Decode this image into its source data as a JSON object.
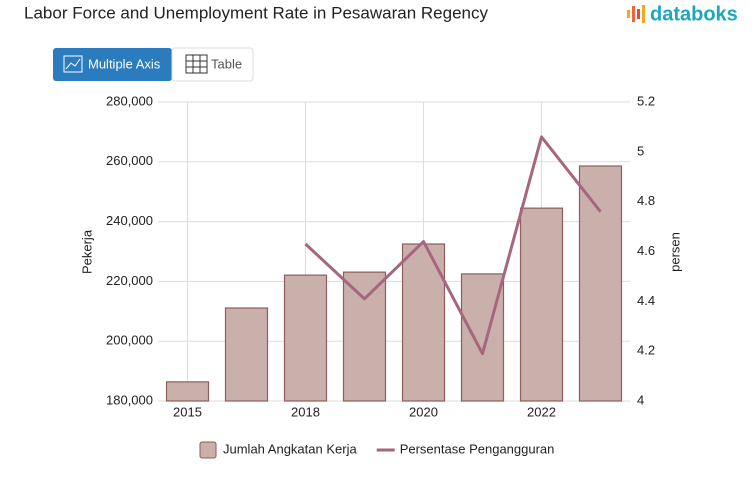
{
  "header": {
    "brand": "databoks"
  },
  "tabs": [
    "Multiple Axis",
    "Table"
  ],
  "chart_data": {
    "type": "bar",
    "title": "Labor Force and Unemployment Rate in Pesawaran Regency",
    "categories": [
      "2015",
      null,
      "2018",
      null,
      "2020",
      null,
      "2022",
      null
    ],
    "y_label": "Pekerja",
    "y2_label": "persen",
    "ylim": [
      180000,
      280000
    ],
    "yticks": [
      {
        "value": 180000,
        "label": "180,000"
      },
      {
        "value": 200000,
        "label": "200,000"
      },
      {
        "value": 220000,
        "label": "220,000"
      },
      {
        "value": 240000,
        "label": "240,000"
      },
      {
        "value": 260000,
        "label": "260,000"
      },
      {
        "value": 280000,
        "label": "280,000"
      }
    ],
    "y2lim": [
      4,
      5.2
    ],
    "y2ticks": [
      4,
      4.2,
      4.4,
      4.6,
      4.8,
      5,
      5.2
    ],
    "grid": true,
    "legend": "bottom",
    "series": [
      {
        "name": "Jumlah Angkatan Kerja",
        "type": "bar",
        "color": "#c9b0ab",
        "edge_color": "#8e5e5a",
        "values": [
          186400,
          211100,
          222100,
          223100,
          232500,
          222500,
          244500,
          258600
        ]
      },
      {
        "name": "Persentase Pengangguran",
        "type": "line",
        "axis": "y2",
        "color": "#a8667e",
        "values": [
          null,
          null,
          4.63,
          4.41,
          4.64,
          4.19,
          5.06,
          4.76
        ]
      }
    ]
  }
}
